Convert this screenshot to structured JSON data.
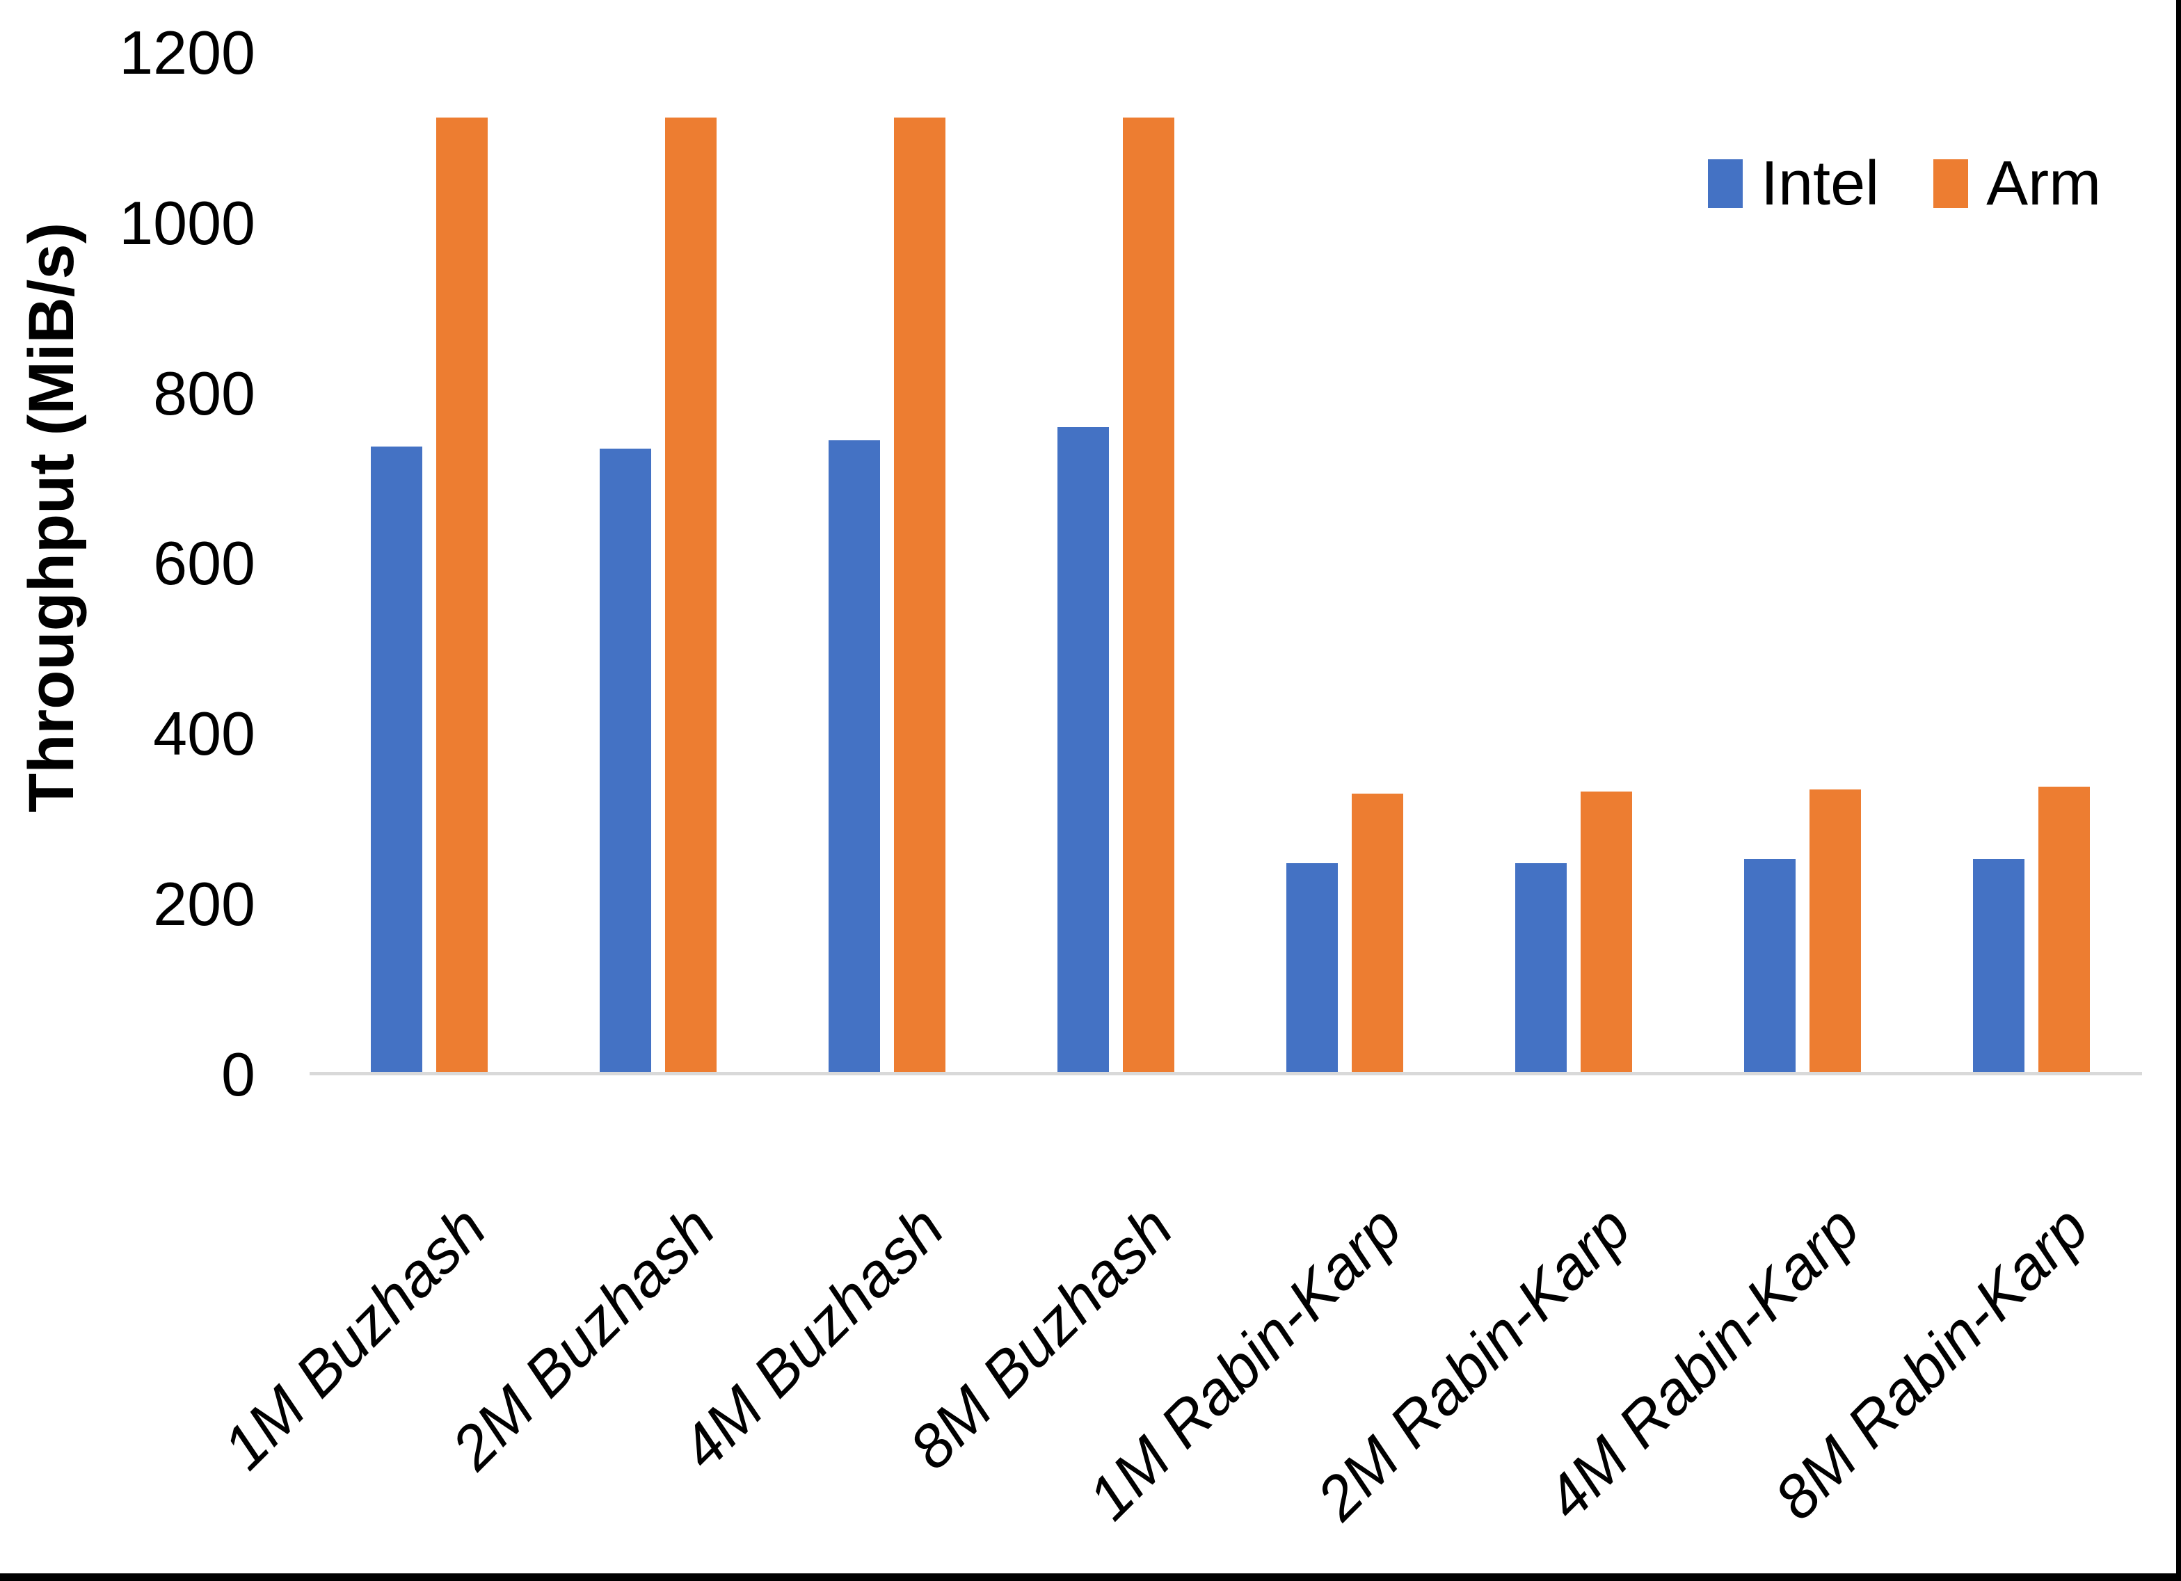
{
  "chart_data": {
    "type": "bar",
    "title": "",
    "xlabel": "",
    "ylabel": "Throughput (MiB/s)",
    "ylim": [
      0,
      1200
    ],
    "yticks": [
      0,
      200,
      400,
      600,
      800,
      1000,
      1200
    ],
    "grid": false,
    "legend_position": "top-right",
    "categories": [
      "1M Buzhash",
      "2M Buzhash",
      "4M Buzhash",
      "8M Buzhash",
      "1M Rabin-Karp",
      "2M Rabin-Karp",
      "4M Rabin-Karp",
      "8M Rabin-Karp"
    ],
    "series": [
      {
        "name": "Intel",
        "color": "#4472C4",
        "values": [
          734,
          732,
          742,
          757,
          245,
          245,
          250,
          250
        ]
      },
      {
        "name": "Arm",
        "color": "#ED7D31",
        "values": [
          1121,
          1121,
          1121,
          1121,
          327,
          329,
          332,
          335
        ]
      }
    ]
  },
  "colors": {
    "background": "#FFFFFF",
    "axis_line": "#D9D9D9",
    "text": "#000000",
    "border": "#000000"
  }
}
